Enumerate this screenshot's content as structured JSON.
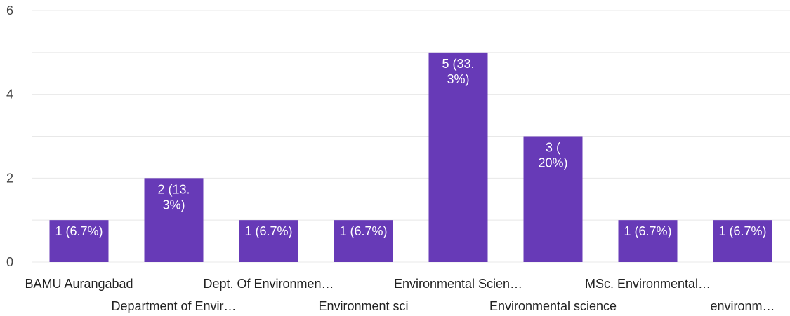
{
  "chart_data": {
    "type": "bar",
    "categories": [
      "BAMU Aurangabad",
      "Department of Envir…",
      "Dept. Of Environmen…",
      "Environment sci",
      "Environmental Scien…",
      "Environmental science",
      "MSc. Environmental…",
      "environm…"
    ],
    "values": [
      1,
      2,
      1,
      1,
      5,
      3,
      1,
      1
    ],
    "data_labels": [
      [
        "1 (6.7%)"
      ],
      [
        "2 (13.",
        "3%)"
      ],
      [
        "1 (6.7%)"
      ],
      [
        "1 (6.7%)"
      ],
      [
        "5 (33.",
        "3%)"
      ],
      [
        "3 (",
        "20%)"
      ],
      [
        "1 (6.7%)"
      ],
      [
        "1 (6.7%)"
      ]
    ],
    "yticks": [
      "0",
      "2",
      "4",
      "6"
    ],
    "ylim": [
      0,
      6
    ],
    "grid": true,
    "legend": "none",
    "title": "",
    "xlabel": "",
    "ylabel": "",
    "bar_color": "#673ab7"
  }
}
